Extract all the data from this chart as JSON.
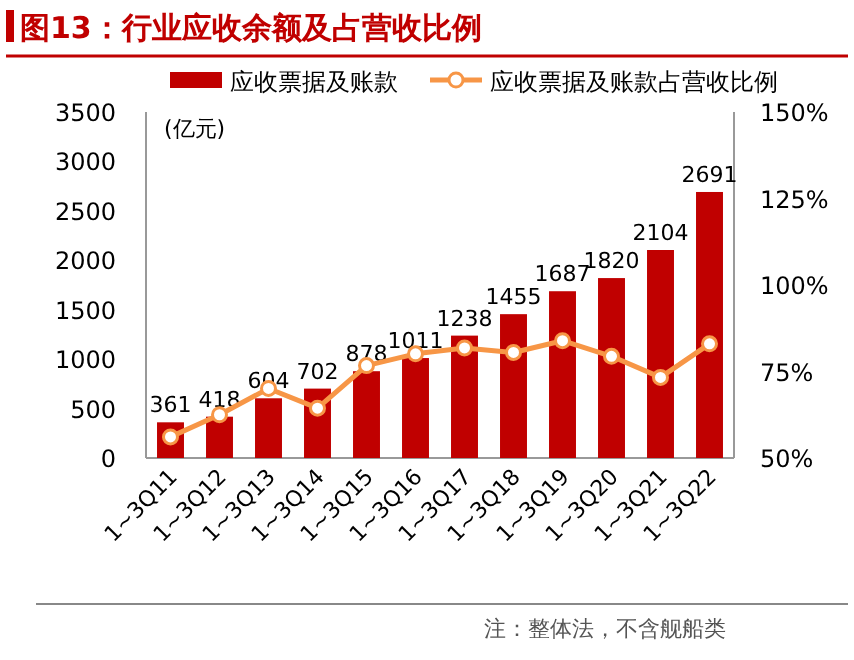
{
  "chart_data": {
    "type": "bar",
    "title": "图13：行业应收余额及占营收比例",
    "categories": [
      "1~3Q11",
      "1~3Q12",
      "1~3Q13",
      "1~3Q14",
      "1~3Q15",
      "1~3Q16",
      "1~3Q17",
      "1~3Q18",
      "1~3Q19",
      "1~3Q20",
      "1~3Q21",
      "1~3Q22"
    ],
    "series": [
      {
        "name": "应收票据及账款",
        "color": "#c00000",
        "values": [
          361,
          418,
          604,
          702,
          878,
          1011,
          1238,
          1455,
          1687,
          1820,
          2104,
          2691
        ],
        "value_labels": [
          "361",
          "418",
          "604",
          "702",
          "878",
          "1011",
          "1238",
          "1455",
          "1687",
          "1820",
          "2104",
          "2691"
        ]
      },
      {
        "name": "应收票据及账款占营收比例",
        "type": "line",
        "axis": "y2",
        "color": "#f79646",
        "marker": "circle",
        "values": [
          56.1,
          62.5,
          70.1,
          64.4,
          76.7,
          80.1,
          81.8,
          80.5,
          83.9,
          79.4,
          73.3,
          83.0
        ]
      }
    ],
    "ylim": [
      0,
      3500
    ],
    "yticks": [
      0,
      500,
      1000,
      1500,
      2000,
      2500,
      3000,
      3500
    ],
    "y2lim": [
      50,
      150
    ],
    "y2ticks": [
      {
        "value": 50,
        "label": "50%"
      },
      {
        "value": 75,
        "label": "75%"
      },
      {
        "value": 100,
        "label": "100%"
      },
      {
        "value": 125,
        "label": "125%"
      },
      {
        "value": 150,
        "label": "150%"
      }
    ],
    "legend": "top",
    "grid": false,
    "annotations": [
      "(亿元)",
      "注：整体法，不含舰船类"
    ]
  }
}
